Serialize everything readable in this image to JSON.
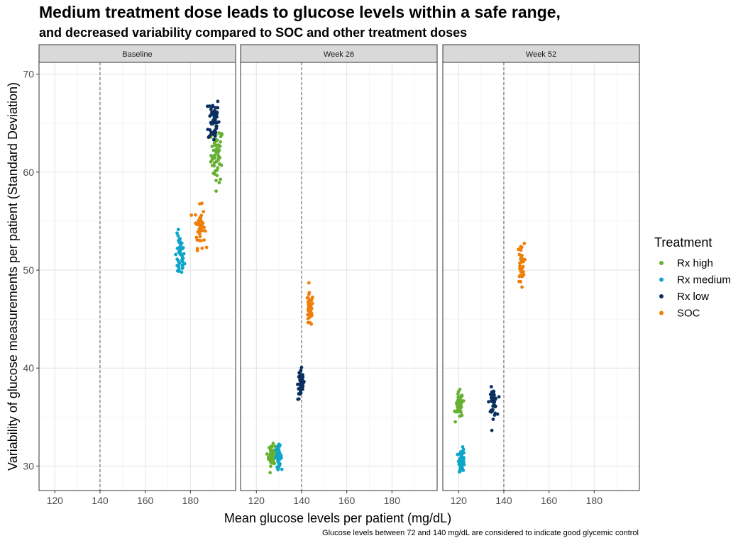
{
  "title": "Medium treatment dose leads to glucose levels within a safe range,",
  "subtitle": "and decreased variability compared to SOC and other treatment doses",
  "caption": "Glucose levels between 72 and 140 mg/dL are considered to indicate good glycemic control",
  "chart_data": {
    "type": "scatter",
    "title": "Medium treatment dose leads to glucose levels within a safe range,",
    "subtitle": "and decreased variability compared to SOC and other treatment doses",
    "xlabel": "Mean glucose levels per patient (mg/dL)",
    "ylabel": "Variability of glucose measurements per patient (Standard Deviation)",
    "xlim": [
      113,
      200
    ],
    "ylim": [
      27.5,
      71.2
    ],
    "x_ticks": [
      120,
      140,
      160,
      180
    ],
    "y_ticks": [
      30,
      40,
      50,
      60,
      70
    ],
    "reference_line": {
      "x": 140,
      "style": "dashed"
    },
    "grid": true,
    "legend_position": "right",
    "legend_title": "Treatment",
    "series_info": [
      {
        "name": "Rx high",
        "color": "#66B032"
      },
      {
        "name": "Rx medium",
        "color": "#0EA5C9"
      },
      {
        "name": "Rx low",
        "color": "#0B2F5E"
      },
      {
        "name": "SOC",
        "color": "#EF7F0A"
      }
    ],
    "panels": [
      {
        "label": "Baseline",
        "clusters": [
          {
            "series": "Rx high",
            "x_center": 191.8,
            "x_spread": 2.2,
            "y_center": 61.8,
            "y_spread": 1.5,
            "n": 60
          },
          {
            "series": "Rx medium",
            "x_center": 175.3,
            "x_spread": 1.7,
            "y_center": 51.3,
            "y_spread": 1.2,
            "n": 45
          },
          {
            "series": "Rx low",
            "x_center": 190.3,
            "x_spread": 2.0,
            "y_center": 65.4,
            "y_spread": 1.3,
            "n": 55
          },
          {
            "series": "SOC",
            "x_center": 184.2,
            "x_spread": 1.8,
            "y_center": 54.4,
            "y_spread": 1.1,
            "n": 45
          }
        ]
      },
      {
        "label": "Week 26",
        "clusters": [
          {
            "series": "Rx high",
            "x_center": 126.8,
            "x_spread": 1.2,
            "y_center": 31.1,
            "y_spread": 0.55,
            "n": 60
          },
          {
            "series": "Rx medium",
            "x_center": 129.8,
            "x_spread": 1.1,
            "y_center": 31.0,
            "y_spread": 0.55,
            "n": 50
          },
          {
            "series": "Rx low",
            "x_center": 139.8,
            "x_spread": 1.2,
            "y_center": 38.4,
            "y_spread": 0.9,
            "n": 45
          },
          {
            "series": "SOC",
            "x_center": 143.6,
            "x_spread": 1.3,
            "y_center": 45.9,
            "y_spread": 0.9,
            "n": 45
          }
        ]
      },
      {
        "label": "Week 52",
        "clusters": [
          {
            "series": "Rx high",
            "x_center": 120.3,
            "x_spread": 1.3,
            "y_center": 36.2,
            "y_spread": 0.7,
            "n": 55
          },
          {
            "series": "Rx medium",
            "x_center": 121.4,
            "x_spread": 1.1,
            "y_center": 30.6,
            "y_spread": 0.6,
            "n": 45
          },
          {
            "series": "Rx low",
            "x_center": 135.2,
            "x_spread": 1.4,
            "y_center": 36.5,
            "y_spread": 0.75,
            "n": 45
          },
          {
            "series": "SOC",
            "x_center": 147.6,
            "x_spread": 1.2,
            "y_center": 50.6,
            "y_spread": 1.1,
            "n": 40
          }
        ]
      }
    ]
  }
}
